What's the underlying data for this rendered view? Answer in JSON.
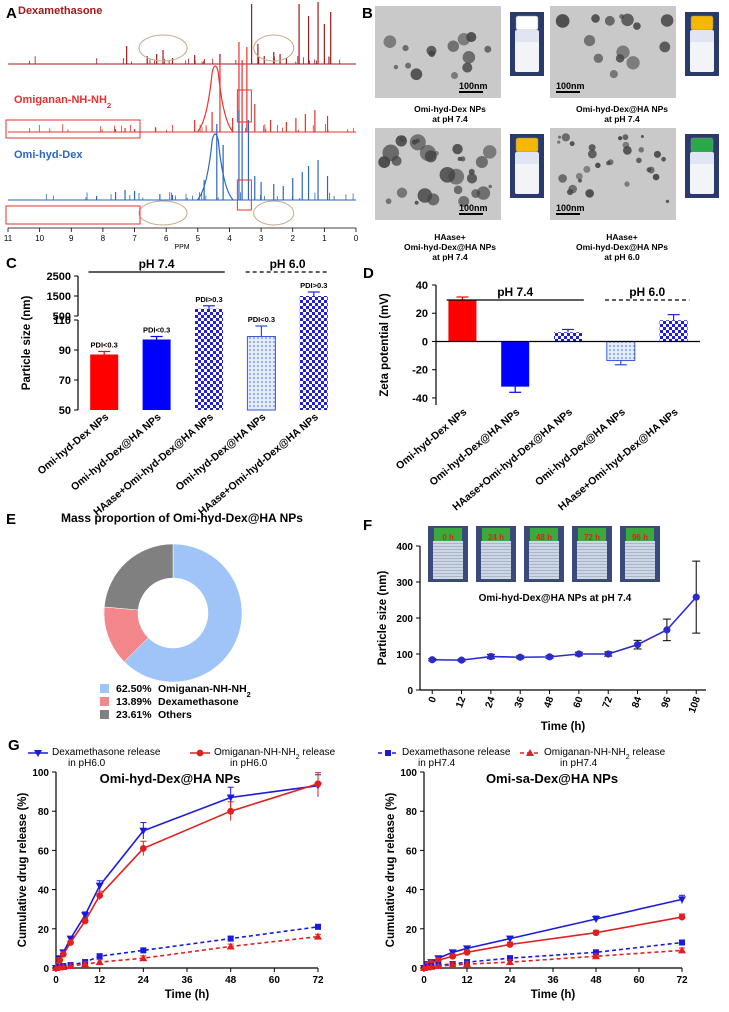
{
  "panels": {
    "A": {
      "label": "A",
      "traces": [
        {
          "name": "Dexamethasone",
          "color": "#a0191c"
        },
        {
          "name": "Omiganan-NH-NH",
          "sub": "2",
          "color": "#e8312f"
        },
        {
          "name": "Omi-hyd-Dex",
          "color": "#2a66c2"
        }
      ],
      "axis_ticks": [
        "11",
        "10",
        "9",
        "8",
        "7",
        "6",
        "5",
        "4",
        "3",
        "2",
        "1",
        "0"
      ],
      "axis_label": "PPM"
    },
    "B": {
      "label": "B",
      "scale_bar": "100nm",
      "captions": [
        [
          "Omi-hyd-Dex NPs",
          "at pH 7.4"
        ],
        [
          "Omi-hyd-Dex@HA  NPs",
          "at pH 7.4"
        ],
        [
          "HAase+",
          "Omi-hyd-Dex@HA  NPs",
          "at pH 7.4"
        ],
        [
          "HAase+",
          "Omi-hyd-Dex@HA  NPs",
          "at pH 6.0"
        ]
      ],
      "cap_colors": [
        "#ffffff",
        "#f5b800",
        "#f5b800",
        "#2aa84a"
      ]
    },
    "C": {
      "label": "C",
      "ylabel": "Particle size (nm)",
      "yticks": [
        "2500",
        "1500",
        "500",
        "110",
        "90",
        "70",
        "50"
      ],
      "groups": [
        "pH 7.4",
        "pH 6.0"
      ],
      "pdi": [
        "PDI<0.3",
        "PDI<0.3",
        "PDI>0.3",
        "PDI<0.3",
        "PDI>0.3"
      ]
    },
    "D": {
      "label": "D",
      "ylabel": "Zeta potential (mV)",
      "yticks": [
        "40",
        "20",
        "0",
        "-20",
        "-40"
      ],
      "groups": [
        "pH 7.4",
        "pH 6.0"
      ]
    },
    "E": {
      "label": "E",
      "title": "Mass proportion of Omi-hyd-Dex@HA NPs",
      "legend": [
        {
          "pct": "62.50%",
          "name": "Omiganan-NH-NH",
          "sub": "2",
          "color": "#9fc5f8"
        },
        {
          "pct": "13.89%",
          "name": "Dexamethasone",
          "sub": "",
          "color": "#f4878c"
        },
        {
          "pct": "23.61%",
          "name": "Others",
          "sub": "",
          "color": "#808080"
        }
      ]
    },
    "F": {
      "label": "F",
      "ylabel": "Particle size (nm)",
      "xlabel": "Time (h)",
      "inset_caption": "Omi-hyd-Dex@HA NPs at pH 7.4",
      "vial_labels": [
        "0 h",
        "24 h",
        "48 h",
        "72 h",
        "96 h"
      ]
    },
    "G": {
      "label": "G",
      "legend": [
        {
          "l1": "Dexamethasone release",
          "l2": "in  pH6.0",
          "color": "#1a1adc",
          "dash": false,
          "marker": "tri-down"
        },
        {
          "l1": "Omiganan-NH-NH",
          "sub": "2",
          "l1b": " release",
          "l2": "in  pH6.0",
          "color": "#e02020",
          "dash": false,
          "marker": "circle"
        },
        {
          "l1": "Dexamethasone release",
          "l2": "in  pH7.4",
          "color": "#1a1adc",
          "dash": true,
          "marker": "square"
        },
        {
          "l1": "Omiganan-NH-NH",
          "sub": "2",
          "l1b": " release",
          "l2": "in  pH7.4",
          "color": "#e02020",
          "dash": true,
          "marker": "tri-up"
        }
      ],
      "ylabel": "Cumulative drug release (%)",
      "xlabel": "Time (h)"
    }
  },
  "chart_data": [
    {
      "panel": "C",
      "type": "bar",
      "categories": [
        "Omi-hyd-Dex NPs",
        "Omi-hyd-Dex@HA NPs",
        "HAase+Omi-hyd-Dex@HA NPs",
        "Omi-hyd-Dex@HA NPs",
        "HAase+Omi-hyd-Dex@HA NPs"
      ],
      "values": [
        87,
        97,
        860,
        99,
        1500
      ],
      "errors": [
        2,
        2,
        150,
        7,
        200
      ],
      "colors": [
        "#ff0000",
        "#0000ff",
        "#2323d8",
        "#c8d8f8",
        "#2323d8"
      ],
      "patterns": [
        "solid",
        "solid",
        "check",
        "dots",
        "check"
      ],
      "yscale": "segmented",
      "ylabel": "Particle size (nm)"
    },
    {
      "panel": "D",
      "type": "bar",
      "categories": [
        "Omi-hyd-Dex NPs",
        "Omi-hyd-Dex@HA NPs",
        "HAase+Omi-hyd-Dex@HA NPs",
        "Omi-hyd-Dex@HA NPs",
        "HAase+Omi-hyd-Dex@HA NPs"
      ],
      "values": [
        29.5,
        -32,
        6.5,
        -13.5,
        15
      ],
      "errors": [
        2,
        4,
        2,
        3,
        4
      ],
      "colors": [
        "#ff0000",
        "#0000ff",
        "#2323d8",
        "#c8d8f8",
        "#2323d8"
      ],
      "patterns": [
        "solid",
        "solid",
        "check",
        "dots",
        "check"
      ],
      "ylim": [
        -45,
        40
      ],
      "ylabel": "Zeta potential (mV)"
    },
    {
      "panel": "E",
      "type": "pie",
      "labels": [
        "Omiganan-NH-NH2",
        "Dexamethasone",
        "Others"
      ],
      "values": [
        62.5,
        13.89,
        23.61
      ],
      "title": "Mass proportion of Omi-hyd-Dex@HA NPs"
    },
    {
      "panel": "F",
      "type": "line",
      "x": [
        0,
        12,
        24,
        36,
        48,
        60,
        72,
        84,
        96,
        108
      ],
      "y": [
        84,
        83,
        93,
        91,
        92,
        100,
        100,
        126,
        167,
        258
      ],
      "err": [
        3,
        3,
        6,
        4,
        4,
        5,
        6,
        12,
        30,
        100
      ],
      "xticks": [
        0,
        12,
        24,
        36,
        48,
        60,
        72,
        84,
        96,
        108
      ],
      "xlim": [
        -5,
        112
      ],
      "ylim": [
        0,
        400
      ],
      "yticks": [
        0,
        100,
        200,
        300,
        400
      ],
      "xlabel": "Time (h)",
      "ylabel": "Particle size (nm)"
    },
    {
      "panel": "G-left",
      "type": "line",
      "title": "Omi-hyd-Dex@HA NPs",
      "xticks": [
        0,
        12,
        24,
        36,
        48,
        60,
        72
      ],
      "xlim": [
        0,
        72
      ],
      "ylim": [
        0,
        100
      ],
      "yticks": [
        0,
        20,
        40,
        60,
        80,
        100
      ],
      "xlabel": "Time (h)",
      "ylabel": "Cumulative drug release (%)",
      "series": [
        {
          "name": "Dexamethasone release in pH6.0",
          "x": [
            0,
            1,
            2,
            4,
            8,
            12,
            24,
            48,
            72
          ],
          "y": [
            0,
            5,
            8,
            15,
            27,
            42,
            70,
            87,
            93
          ]
        },
        {
          "name": "Omiganan-NH-NH2 release in pH6.0",
          "x": [
            0,
            1,
            2,
            4,
            8,
            12,
            24,
            48,
            72
          ],
          "y": [
            0,
            4,
            7,
            13,
            24,
            37,
            61,
            80,
            94
          ]
        },
        {
          "name": "Dexamethasone release in pH7.4",
          "x": [
            0,
            1,
            2,
            4,
            8,
            12,
            24,
            48,
            72
          ],
          "y": [
            0,
            0.5,
            1,
            1.5,
            3,
            6,
            9,
            15,
            21
          ]
        },
        {
          "name": "Omiganan-NH-NH2 release in pH7.4",
          "x": [
            0,
            1,
            2,
            4,
            8,
            12,
            24,
            48,
            72
          ],
          "y": [
            0,
            0.3,
            0.5,
            1,
            2,
            3,
            5,
            11,
            16
          ]
        }
      ]
    },
    {
      "panel": "G-right",
      "type": "line",
      "title": "Omi-sa-Dex@HA NPs",
      "xticks": [
        0,
        12,
        24,
        36,
        48,
        60,
        72
      ],
      "xlim": [
        0,
        72
      ],
      "ylim": [
        0,
        100
      ],
      "yticks": [
        0,
        20,
        40,
        60,
        80,
        100
      ],
      "xlabel": "Time (h)",
      "ylabel": "Cumulative drug release (%)",
      "series": [
        {
          "name": "Dexamethasone release in pH6.0",
          "x": [
            0,
            1,
            2,
            4,
            8,
            12,
            24,
            48,
            72
          ],
          "y": [
            0,
            2,
            3,
            5,
            8,
            10,
            15,
            25,
            35
          ]
        },
        {
          "name": "Omiganan-NH-NH2 release in pH6.0",
          "x": [
            0,
            1,
            2,
            4,
            8,
            12,
            24,
            48,
            72
          ],
          "y": [
            0,
            1.5,
            2.5,
            4,
            6,
            8,
            12,
            18,
            26
          ]
        },
        {
          "name": "Dexamethasone release in pH7.4",
          "x": [
            0,
            1,
            2,
            4,
            8,
            12,
            24,
            48,
            72
          ],
          "y": [
            0,
            0.5,
            1,
            1.5,
            2,
            3,
            5,
            8,
            13
          ]
        },
        {
          "name": "Omiganan-NH-NH2 release in pH7.4",
          "x": [
            0,
            1,
            2,
            4,
            8,
            12,
            24,
            48,
            72
          ],
          "y": [
            0,
            0.3,
            0.6,
            1,
            1.5,
            2,
            3,
            6,
            9
          ]
        }
      ]
    }
  ]
}
